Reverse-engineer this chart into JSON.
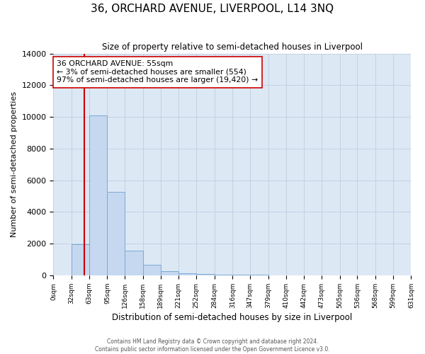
{
  "title": "36, ORCHARD AVENUE, LIVERPOOL, L14 3NQ",
  "subtitle": "Size of property relative to semi-detached houses in Liverpool",
  "xlabel": "Distribution of semi-detached houses by size in Liverpool",
  "ylabel": "Number of semi-detached properties",
  "bin_edges": [
    0,
    32,
    63,
    95,
    126,
    158,
    189,
    221,
    252,
    284,
    316,
    347,
    379,
    410,
    442,
    473,
    505,
    536,
    568,
    599,
    631
  ],
  "bar_heights": [
    0,
    1950,
    10100,
    5250,
    1580,
    650,
    250,
    130,
    80,
    60,
    45,
    30,
    20,
    10,
    5,
    3,
    2,
    1,
    1,
    0
  ],
  "bar_color": "#c5d8f0",
  "bar_edge_color": "#7aaad0",
  "property_size": 55,
  "property_label": "36 ORCHARD AVENUE: 55sqm",
  "smaller_pct": 3,
  "smaller_count": 554,
  "larger_pct": 97,
  "larger_count": 19420,
  "red_line_color": "#cc0000",
  "annotation_box_edge_color": "#cc0000",
  "ylim": [
    0,
    14000
  ],
  "yticks": [
    0,
    2000,
    4000,
    6000,
    8000,
    10000,
    12000,
    14000
  ],
  "ax_facecolor": "#dde8f5",
  "background_color": "#ffffff",
  "grid_color": "#b8c8dc",
  "footer_line1": "Contains HM Land Registry data © Crown copyright and database right 2024.",
  "footer_line2": "Contains public sector information licensed under the Open Government Licence v3.0."
}
